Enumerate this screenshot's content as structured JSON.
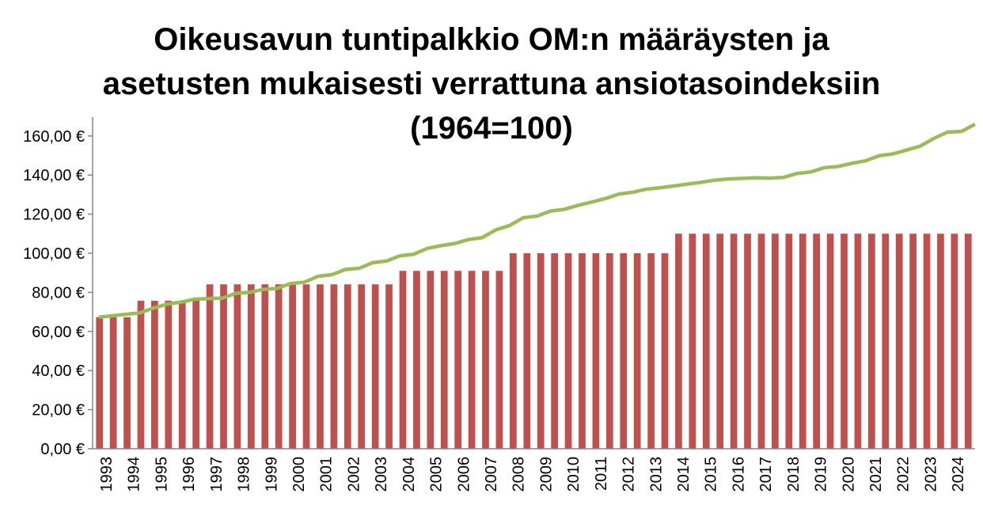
{
  "chart_data": {
    "type": "bar",
    "title_lines": [
      "Oikeusavun tuntipalkkio OM:n määräysten ja",
      "asetusten mukaisesti verrattuna ansiotasoindeksiin",
      "(1964=100)"
    ],
    "ylim": [
      0,
      170
    ],
    "yticks": [
      0,
      20,
      40,
      60,
      80,
      100,
      120,
      140,
      160
    ],
    "ytick_labels": [
      "0,00 €",
      "20,00 €",
      "40,00 €",
      "60,00 €",
      "80,00 €",
      "100,00 €",
      "120,00 €",
      "140,00 €",
      "160,00 €"
    ],
    "grid": false,
    "legend": "none",
    "year_labels": [
      "1993",
      "1994",
      "1995",
      "1996",
      "1997",
      "1998",
      "1999",
      "2000",
      "2001",
      "2002",
      "2003",
      "2004",
      "2005",
      "2006",
      "2007",
      "2008",
      "2009",
      "2010",
      "2011",
      "2012",
      "2013",
      "2014",
      "2015",
      "2016",
      "2017",
      "2018",
      "2019",
      "2020",
      "2021",
      "2022",
      "2023",
      "2024"
    ],
    "series": [
      {
        "type": "bar",
        "color": "#c0504d",
        "values": [
          67.3,
          67.3,
          67.3,
          75.7,
          75.7,
          75.7,
          75.7,
          75.7,
          84.1,
          84.1,
          84.1,
          84.1,
          84.1,
          84.1,
          84.1,
          84.1,
          84.1,
          84.1,
          84.1,
          84.1,
          84.1,
          84.1,
          91.0,
          91.0,
          91.0,
          91.0,
          91.0,
          91.0,
          91.0,
          91.0,
          100.0,
          100.0,
          100.0,
          100.0,
          100.0,
          100.0,
          100.0,
          100.0,
          100.0,
          100.0,
          100.0,
          100.0,
          110.0,
          110.0,
          110.0,
          110.0,
          110.0,
          110.0,
          110.0,
          110.0,
          110.0,
          110.0,
          110.0,
          110.0,
          110.0,
          110.0,
          110.0,
          110.0,
          110.0,
          110.0,
          110.0,
          110.0,
          110.0,
          110.0
        ]
      },
      {
        "type": "line",
        "color": "#9bbb59",
        "values": [
          67.3,
          68.0,
          68.8,
          69.5,
          72.0,
          74.0,
          75.0,
          76.5,
          76.8,
          77.0,
          79.5,
          80.0,
          81.5,
          82.0,
          84.5,
          85.2,
          88.2,
          89.0,
          91.7,
          92.3,
          95.2,
          96.0,
          98.7,
          99.5,
          102.5,
          103.9,
          105.0,
          107.0,
          108.0,
          112.0,
          114.2,
          118.2,
          119.0,
          121.6,
          122.5,
          124.5,
          126.2,
          128.0,
          130.3,
          131.2,
          132.8,
          133.5,
          134.4,
          135.4,
          136.3,
          137.4,
          138.0,
          138.3,
          138.6,
          138.4,
          138.8,
          140.8,
          141.6,
          143.8,
          144.4,
          146.0,
          147.3,
          149.9,
          150.8,
          152.8,
          154.8,
          158.8,
          162.0,
          162.3,
          166.0
        ]
      }
    ]
  }
}
